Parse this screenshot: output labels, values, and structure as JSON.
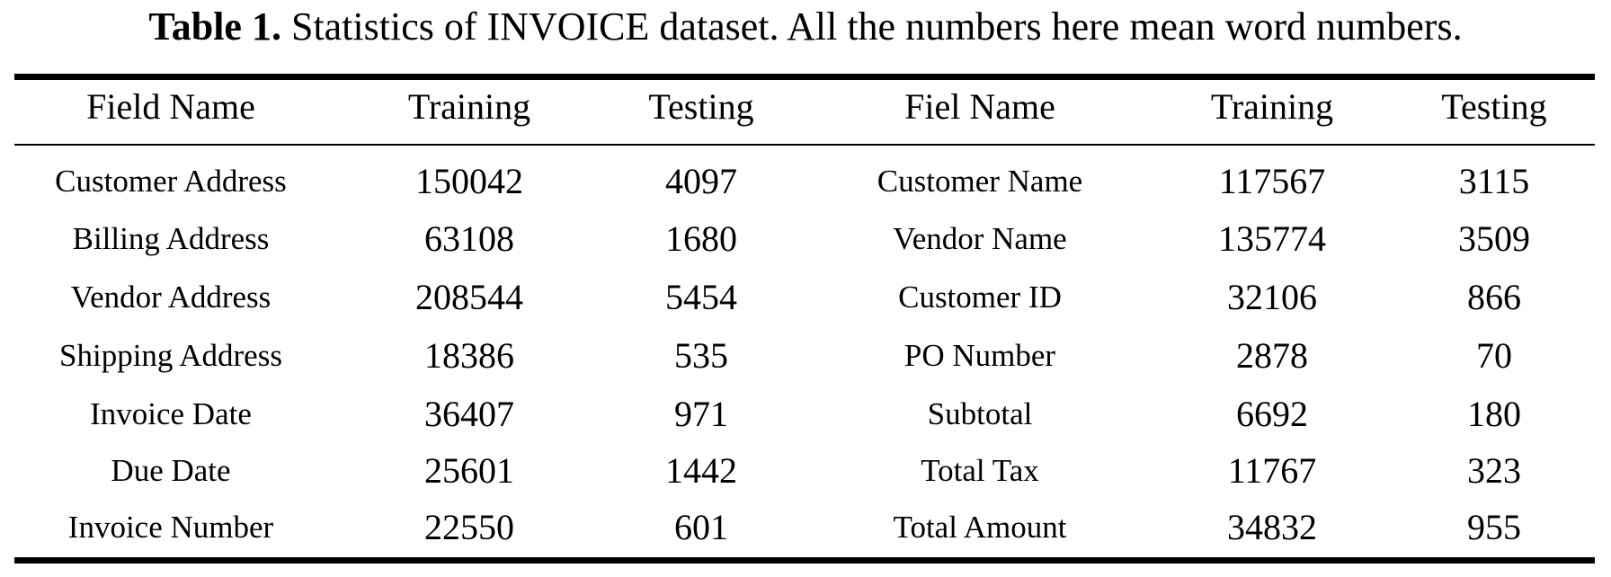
{
  "caption": {
    "label": "Table 1.",
    "text": " Statistics of INVOICE dataset. All the numbers here mean word numbers."
  },
  "table": {
    "headers": [
      "Field Name",
      "Training",
      "Testing",
      "Fiel Name",
      "Training",
      "Testing"
    ],
    "rows": [
      [
        "Customer Address",
        "150042",
        "4097",
        "Customer Name",
        "117567",
        "3115"
      ],
      [
        "Billing Address",
        "63108",
        "1680",
        "Vendor Name",
        "135774",
        "3509"
      ],
      [
        "Vendor Address",
        "208544",
        "5454",
        "Customer ID",
        "32106",
        "866"
      ],
      [
        "Shipping Address",
        "18386",
        "535",
        "PO Number",
        "2878",
        "70"
      ],
      [
        "Invoice Date",
        "36407",
        "971",
        "Subtotal",
        "6692",
        "180"
      ],
      [
        "Due Date",
        "25601",
        "1442",
        "Total Tax",
        "11767",
        "323"
      ],
      [
        "Invoice Number",
        "22550",
        "601",
        "Total Amount",
        "34832",
        "955"
      ]
    ]
  }
}
